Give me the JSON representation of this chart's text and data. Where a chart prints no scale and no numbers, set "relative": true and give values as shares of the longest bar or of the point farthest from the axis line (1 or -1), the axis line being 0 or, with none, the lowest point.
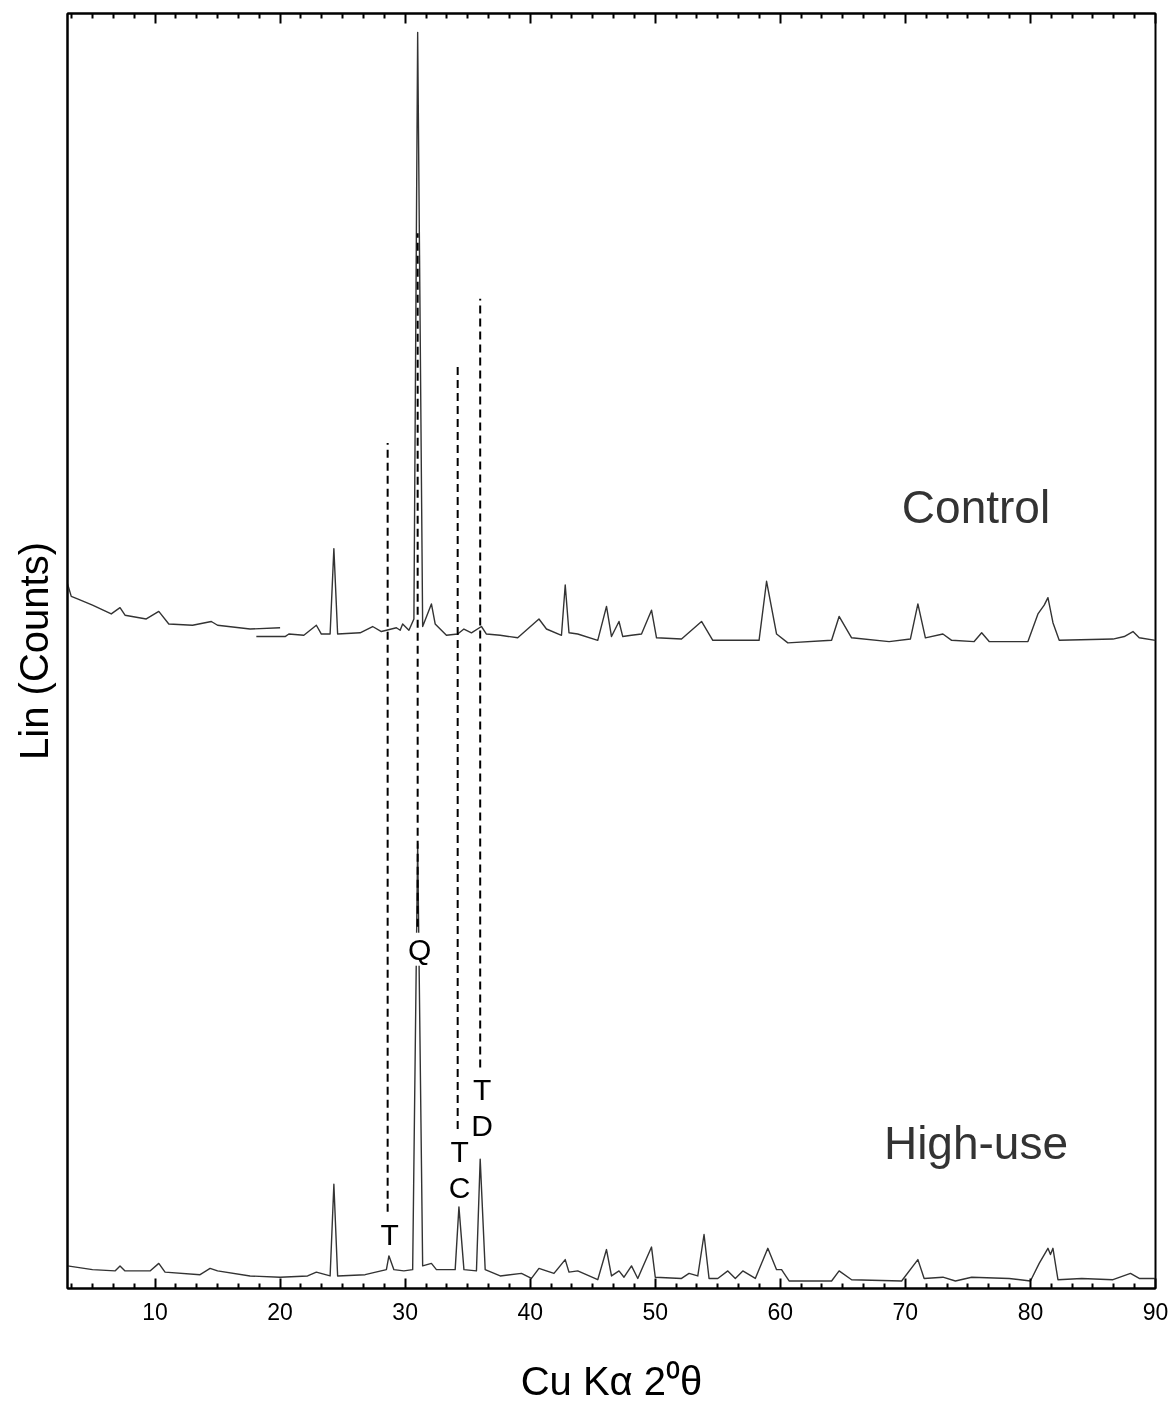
{
  "chart_data": {
    "type": "line",
    "relative": true,
    "xlabel": "Cu Kα 2⁰θ",
    "ylabel": "Lin (Counts)",
    "xlim": [
      3,
      90
    ],
    "xticks": [
      {
        "value": 3.33,
        "label": null
      },
      {
        "value": 5,
        "label": null
      },
      {
        "value": 6.67,
        "label": null
      },
      {
        "value": 8.33,
        "label": null
      },
      10,
      {
        "value": 11.67,
        "label": null
      },
      {
        "value": 13.33,
        "label": null
      },
      {
        "value": 15,
        "label": null
      },
      {
        "value": 16.67,
        "label": null
      },
      {
        "value": 18.33,
        "label": null
      },
      20,
      {
        "value": 21.67,
        "label": null
      },
      {
        "value": 23.33,
        "label": null
      },
      {
        "value": 25,
        "label": null
      },
      {
        "value": 26.67,
        "label": null
      },
      {
        "value": 28.33,
        "label": null
      },
      30,
      {
        "value": 31.67,
        "label": null
      },
      {
        "value": 33.33,
        "label": null
      },
      {
        "value": 35,
        "label": null
      },
      {
        "value": 36.67,
        "label": null
      },
      {
        "value": 38.33,
        "label": null
      },
      40,
      {
        "value": 41.67,
        "label": null
      },
      {
        "value": 43.33,
        "label": null
      },
      {
        "value": 45,
        "label": null
      },
      {
        "value": 46.67,
        "label": null
      },
      {
        "value": 48.33,
        "label": null
      },
      50,
      {
        "value": 51.67,
        "label": null
      },
      {
        "value": 53.33,
        "label": null
      },
      {
        "value": 55,
        "label": null
      },
      {
        "value": 56.67,
        "label": null
      },
      {
        "value": 58.33,
        "label": null
      },
      60,
      {
        "value": 61.67,
        "label": null
      },
      {
        "value": 63.33,
        "label": null
      },
      {
        "value": 65,
        "label": null
      },
      {
        "value": 66.67,
        "label": null
      },
      {
        "value": 68.33,
        "label": null
      },
      70,
      {
        "value": 71.67,
        "label": null
      },
      {
        "value": 73.33,
        "label": null
      },
      {
        "value": 75,
        "label": null
      },
      {
        "value": 76.67,
        "label": null
      },
      {
        "value": 78.33,
        "label": null
      },
      80,
      {
        "value": 81.67,
        "label": null
      },
      {
        "value": 83.33,
        "label": null
      },
      {
        "value": 85,
        "label": null
      },
      {
        "value": 86.67,
        "label": null
      },
      {
        "value": 88.33,
        "label": null
      },
      90
    ],
    "series": [
      {
        "name": "Control",
        "color": "#333333",
        "x": [
          18.1,
          20.4,
          20.7,
          21.9,
          22.9,
          23.3,
          24.0,
          24.3,
          24.6,
          26.4,
          27.4,
          28.1,
          29.3,
          29.6,
          29.8,
          30.3,
          30.7,
          31.0,
          31.4,
          32.1,
          32.4,
          33.3,
          34.2,
          34.7,
          35.3,
          36.1,
          36.5,
          37.6,
          39.0,
          40.7,
          41.3,
          42.5,
          42.8,
          43.1,
          43.8,
          45.4,
          46.1,
          46.5,
          47.1,
          47.4,
          48.1,
          48.9,
          49.7,
          50.1,
          52.1,
          53.7,
          54.6,
          58.3,
          58.9,
          59.7,
          60.6,
          64.1,
          64.7,
          65.7,
          68.7,
          70.4,
          71.0,
          71.6,
          73.0,
          73.7,
          75.5,
          76.1,
          76.7,
          79.8,
          80.6,
          81.1,
          81.4,
          81.8,
          82.3,
          86.6,
          87.5,
          88.2,
          88.7,
          90.0
        ],
        "values": [
          0.519,
          0.519,
          0.521,
          0.52,
          0.528,
          0.521,
          0.521,
          0.589,
          0.521,
          0.522,
          0.527,
          0.523,
          0.526,
          0.524,
          0.529,
          0.524,
          0.533,
          1.0,
          0.527,
          0.545,
          0.529,
          0.52,
          0.521,
          0.525,
          0.522,
          0.527,
          0.521,
          0.52,
          0.518,
          0.533,
          0.525,
          0.52,
          0.56,
          0.522,
          0.521,
          0.516,
          0.543,
          0.519,
          0.531,
          0.519,
          0.52,
          0.521,
          0.54,
          0.518,
          0.517,
          0.531,
          0.516,
          0.516,
          0.563,
          0.521,
          0.514,
          0.516,
          0.535,
          0.518,
          0.515,
          0.517,
          0.545,
          0.518,
          0.521,
          0.516,
          0.515,
          0.522,
          0.515,
          0.515,
          0.537,
          0.544,
          0.55,
          0.53,
          0.516,
          0.517,
          0.519,
          0.523,
          0.518,
          0.516
        ]
      },
      {
        "color": "#333333",
        "x": [
          3.0,
          3.3,
          3.8,
          5.0,
          6.5,
          7.2,
          7.6,
          9.3,
          10.3,
          11.1,
          13.0,
          14.5,
          15.0,
          17.6,
          20.0
        ],
        "values": [
          0.561,
          0.551,
          0.549,
          0.544,
          0.537,
          0.542,
          0.536,
          0.533,
          0.539,
          0.529,
          0.528,
          0.531,
          0.528,
          0.525,
          0.526
        ]
      },
      {
        "name": "High-use",
        "color": "#333333",
        "x": [
          3.0,
          5.0,
          6.8,
          7.2,
          7.6,
          9.6,
          10.3,
          10.8,
          13.6,
          14.4,
          15.0,
          17.6,
          20.0,
          22.2,
          22.9,
          24.0,
          24.3,
          24.6,
          26.8,
          28.5,
          28.7,
          29.1,
          29.9,
          30.6,
          31.0,
          31.4,
          32.1,
          32.5,
          34.0,
          34.3,
          34.7,
          35.7,
          36.0,
          36.4,
          37.6,
          39.3,
          40.1,
          40.7,
          41.9,
          42.8,
          43.1,
          43.8,
          45.4,
          46.1,
          46.5,
          47.1,
          47.5,
          48.1,
          48.6,
          49.7,
          50.0,
          52.1,
          52.7,
          53.4,
          53.9,
          54.3,
          55.0,
          55.8,
          56.4,
          57.0,
          58.0,
          59.0,
          59.7,
          60.1,
          60.7,
          64.1,
          64.7,
          65.7,
          69.7,
          71.0,
          71.5,
          73.0,
          74.0,
          75.3,
          78.3,
          80.0,
          80.7,
          81.4,
          81.6,
          81.8,
          82.2,
          84.1,
          86.6,
          88.0,
          88.7,
          90.0
        ],
        "values": [
          0.018,
          0.015,
          0.014,
          0.018,
          0.014,
          0.014,
          0.02,
          0.013,
          0.011,
          0.016,
          0.014,
          0.01,
          0.009,
          0.01,
          0.013,
          0.01,
          0.083,
          0.01,
          0.011,
          0.015,
          0.026,
          0.015,
          0.014,
          0.015,
          0.354,
          0.018,
          0.02,
          0.015,
          0.015,
          0.065,
          0.015,
          0.014,
          0.103,
          0.015,
          0.01,
          0.012,
          0.008,
          0.016,
          0.012,
          0.023,
          0.013,
          0.014,
          0.007,
          0.031,
          0.01,
          0.014,
          0.009,
          0.018,
          0.008,
          0.033,
          0.009,
          0.008,
          0.012,
          0.01,
          0.043,
          0.008,
          0.008,
          0.014,
          0.008,
          0.014,
          0.008,
          0.032,
          0.015,
          0.015,
          0.006,
          0.006,
          0.014,
          0.007,
          0.006,
          0.023,
          0.008,
          0.009,
          0.006,
          0.009,
          0.008,
          0.006,
          0.02,
          0.032,
          0.027,
          0.032,
          0.007,
          0.008,
          0.007,
          0.012,
          0.008,
          0.008
        ]
      },
      {
        "color": "#000000",
        "line_style": "dashed",
        "x": [
          28.6,
          28.6
        ],
        "values": [
          0.061,
          0.673
        ]
      },
      {
        "color": "#000000",
        "line_style": "dashed",
        "x": [
          31.0,
          31.0
        ],
        "values": [
          0.288,
          0.84
        ]
      },
      {
        "color": "#000000",
        "line_style": "dashed",
        "x": [
          34.2,
          34.2
        ],
        "values": [
          0.127,
          0.736
        ]
      },
      {
        "color": "#000000",
        "line_style": "dashed",
        "x": [
          36.0,
          36.0
        ],
        "values": [
          0.176,
          0.788
        ]
      }
    ],
    "annotations": [
      {
        "text": "T",
        "x": 28.6,
        "y": 0.061
      },
      {
        "text": "Q",
        "x": 31.0,
        "y": 0.288
      },
      {
        "text": "T",
        "x": 34.2,
        "y": 0.127
      },
      {
        "text": "C",
        "x": 34.2,
        "y": 0.127
      },
      {
        "text": "T",
        "x": 36.0,
        "y": 0.176
      },
      {
        "text": "D",
        "x": 36.0,
        "y": 0.176
      }
    ]
  }
}
